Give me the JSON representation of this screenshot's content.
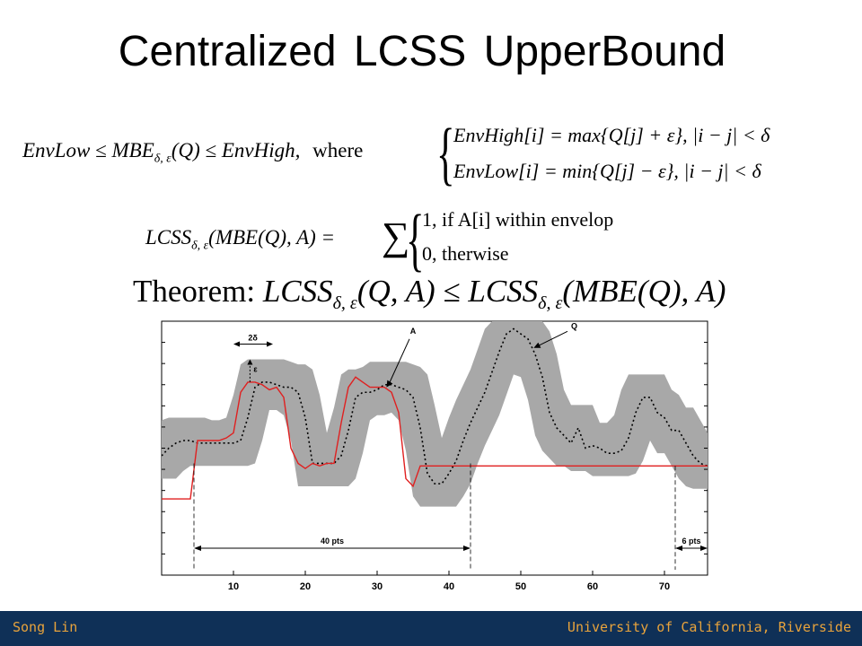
{
  "slide": {
    "title": "Centralized LCSS UpperBound",
    "eq1": {
      "left": "EnvLow ≤ MBE",
      "sub": "δ, ε",
      "mid": "(Q) ≤ EnvHigh,",
      "where": "where",
      "case_high": "EnvHigh[i] = max{Q[j] + ε},   |i − j| < δ",
      "case_low": "EnvLow[i] = min{Q[j] − ε},   |i − j| < δ"
    },
    "eq2": {
      "lhs": "LCSS",
      "sub": "δ, ε",
      "rhs": "(MBE(Q), A) =",
      "sigma": "∑",
      "case_one": "1,  if A[i] within envelop",
      "case_zero": "0,  therwise"
    },
    "theorem": {
      "label": "Theorem:",
      "lhs": "LCSS",
      "sub": "δ, ε",
      "lhs_args": "(Q, A) ≤ LCSS",
      "rhs_args": "(MBE(Q), A)"
    }
  },
  "chart_data": {
    "type": "line",
    "xlim": [
      0,
      76
    ],
    "x_ticks": [
      "10",
      "20",
      "30",
      "40",
      "50",
      "60",
      "70"
    ],
    "series": [
      {
        "name": "Q",
        "style": "dotted",
        "color": "#000000",
        "x": [
          0,
          1,
          2,
          3,
          4,
          5,
          6,
          7,
          8,
          9,
          10,
          11,
          12,
          13,
          14,
          15,
          16,
          17,
          18,
          19,
          20,
          21,
          22,
          23,
          24,
          25,
          26,
          27,
          28,
          29,
          30,
          31,
          32,
          33,
          34,
          35,
          36,
          37,
          38,
          39,
          40,
          41,
          42,
          43,
          44,
          45,
          46,
          47,
          48,
          49,
          50,
          51,
          52,
          53,
          54,
          55,
          56,
          57,
          58,
          59,
          60,
          61,
          62,
          63,
          64,
          65,
          66,
          67,
          68,
          69,
          70,
          71,
          72,
          73,
          74,
          75,
          76
        ],
        "y": [
          0.47,
          0.5,
          0.52,
          0.53,
          0.53,
          0.52,
          0.52,
          0.52,
          0.52,
          0.52,
          0.52,
          0.53,
          0.62,
          0.74,
          0.76,
          0.76,
          0.75,
          0.74,
          0.74,
          0.72,
          0.62,
          0.44,
          0.44,
          0.44,
          0.44,
          0.47,
          0.57,
          0.7,
          0.72,
          0.72,
          0.73,
          0.75,
          0.75,
          0.74,
          0.73,
          0.7,
          0.58,
          0.4,
          0.36,
          0.36,
          0.4,
          0.45,
          0.53,
          0.6,
          0.66,
          0.72,
          0.8,
          0.88,
          0.95,
          0.97,
          0.95,
          0.93,
          0.87,
          0.78,
          0.64,
          0.58,
          0.55,
          0.52,
          0.58,
          0.5,
          0.51,
          0.5,
          0.48,
          0.48,
          0.49,
          0.54,
          0.64,
          0.7,
          0.7,
          0.64,
          0.62,
          0.57,
          0.57,
          0.52,
          0.47,
          0.44,
          0.43
        ]
      },
      {
        "name": "A",
        "style": "solid",
        "color": "#e02020",
        "x": [
          0,
          3,
          4,
          5,
          6,
          7,
          8,
          9,
          10,
          11,
          12,
          13,
          14,
          15,
          16,
          17,
          18,
          19,
          20,
          21,
          22,
          23,
          24,
          25,
          26,
          27,
          28,
          29,
          30,
          31,
          32,
          33,
          34,
          35,
          36,
          37,
          38,
          39,
          40,
          41,
          42,
          43,
          44,
          45,
          46,
          47,
          48,
          49,
          50,
          51,
          52,
          53,
          54,
          55,
          56,
          57,
          58,
          59,
          60,
          61,
          62,
          63,
          64,
          65,
          66,
          67,
          68,
          69,
          70,
          71,
          72,
          73,
          74,
          75,
          76
        ],
        "y": [
          0.3,
          0.3,
          0.3,
          0.53,
          0.53,
          0.53,
          0.53,
          0.54,
          0.56,
          0.72,
          0.76,
          0.76,
          0.75,
          0.73,
          0.74,
          0.7,
          0.5,
          0.44,
          0.42,
          0.44,
          0.43,
          0.44,
          0.44,
          0.6,
          0.74,
          0.78,
          0.76,
          0.74,
          0.74,
          0.74,
          0.72,
          0.64,
          0.38,
          0.35,
          0.43,
          0.43,
          0.43,
          0.43,
          0.43,
          0.43,
          0.43,
          0.43,
          0.43,
          0.43,
          0.43,
          0.43,
          0.43,
          0.43,
          0.43,
          0.43,
          0.43,
          0.43,
          0.43,
          0.43,
          0.43,
          0.43,
          0.43,
          0.43,
          0.43,
          0.43,
          0.43,
          0.43,
          0.43,
          0.43,
          0.43,
          0.43,
          0.43,
          0.43,
          0.43,
          0.43,
          0.43,
          0.43,
          0.43,
          0.43,
          0.43
        ]
      }
    ],
    "envelope_delta": 3,
    "envelope_eps": 0.09,
    "annotations": {
      "label_A": "A",
      "label_Q": "Q",
      "delta_label": "2δ",
      "eps_label": "ε",
      "span1_label": "40 pts",
      "span2_label": "6 pts"
    },
    "envelope_color": "#a8a8a8"
  },
  "footer": {
    "author": "Song Lin",
    "affiliation": "University of California, Riverside",
    "bg_color": "#0f3057",
    "text_color": "#e8a33c"
  }
}
